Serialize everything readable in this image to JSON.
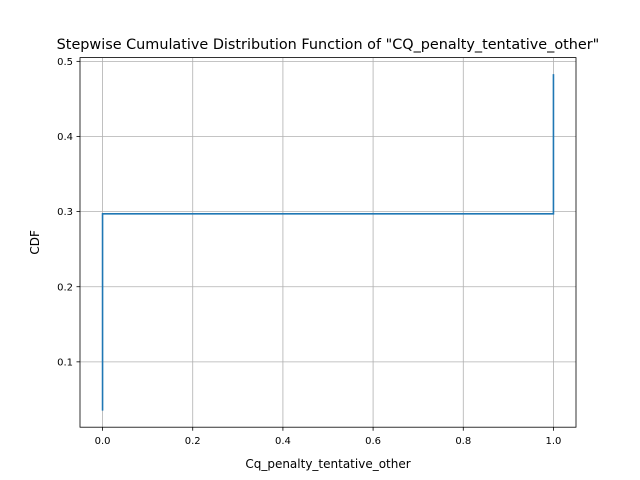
{
  "chart_data": {
    "type": "line",
    "title": "Stepwise Cumulative Distribution Function of \"CQ_penalty_tentative_other\"",
    "xlabel": "Cq_penalty_tentative_other",
    "ylabel": "CDF",
    "xlim": [
      -0.05,
      1.05
    ],
    "ylim": [
      0.013,
      0.505
    ],
    "xticks": [
      0.0,
      0.2,
      0.4,
      0.6,
      0.8,
      1.0
    ],
    "xtick_labels": [
      "0.0",
      "0.2",
      "0.4",
      "0.6",
      "0.8",
      "1.0"
    ],
    "yticks": [
      0.1,
      0.2,
      0.3,
      0.4,
      0.5
    ],
    "ytick_labels": [
      "0.1",
      "0.2",
      "0.3",
      "0.4",
      "0.5"
    ],
    "grid": true,
    "line_color": "#1f77b4",
    "series": [
      {
        "step": "post",
        "x": [
          0.0,
          0.0,
          1.0,
          1.0
        ],
        "y": [
          0.035,
          0.297,
          0.297,
          0.483
        ]
      }
    ]
  }
}
